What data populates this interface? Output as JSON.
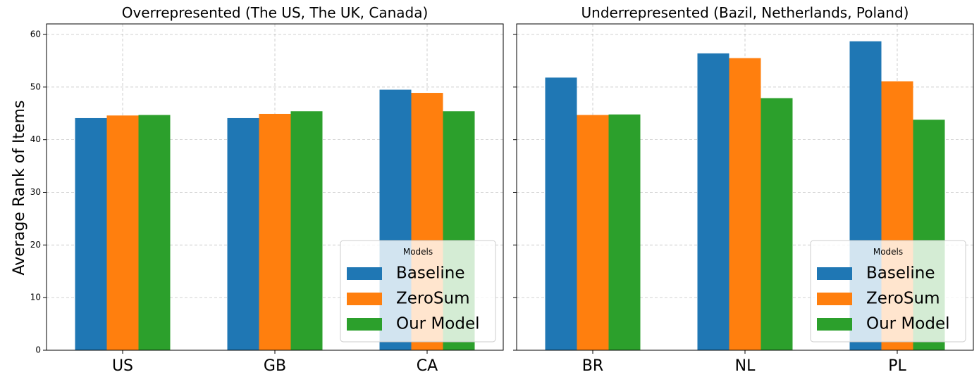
{
  "figure": {
    "ylabel": "Average Rank of Items",
    "legend_title": "Models"
  },
  "colors": {
    "Baseline": "#1f77b4",
    "ZeroSum": "#ff7f0e",
    "Our Model": "#2ca02c",
    "grid": "#b0b0b0"
  },
  "chart_data": [
    {
      "type": "bar",
      "title": "Overrepresented (The US, The UK, Canada)",
      "categories": [
        "US",
        "GB",
        "CA"
      ],
      "series": [
        {
          "name": "Baseline",
          "values": [
            44.1,
            44.1,
            49.5
          ]
        },
        {
          "name": "ZeroSum",
          "values": [
            44.6,
            44.9,
            48.9
          ]
        },
        {
          "name": "Our Model",
          "values": [
            44.7,
            45.4,
            45.4
          ]
        }
      ],
      "ylabel": "Average Rank of Items",
      "ylim": [
        0,
        62
      ],
      "yticks": [
        0,
        10,
        20,
        30,
        40,
        50,
        60
      ],
      "grid": true,
      "legend": {
        "title": "Models",
        "position": "bottom-right"
      }
    },
    {
      "type": "bar",
      "title": "Underrepresented (Bazil, Netherlands, Poland)",
      "categories": [
        "BR",
        "NL",
        "PL"
      ],
      "series": [
        {
          "name": "Baseline",
          "values": [
            51.8,
            56.4,
            58.7
          ]
        },
        {
          "name": "ZeroSum",
          "values": [
            44.7,
            55.5,
            51.1
          ]
        },
        {
          "name": "Our Model",
          "values": [
            44.8,
            47.9,
            43.8
          ]
        }
      ],
      "ylim": [
        0,
        62
      ],
      "yticks": [
        0,
        10,
        20,
        30,
        40,
        50,
        60
      ],
      "grid": true,
      "legend": {
        "title": "Models",
        "position": "bottom-right"
      }
    }
  ]
}
